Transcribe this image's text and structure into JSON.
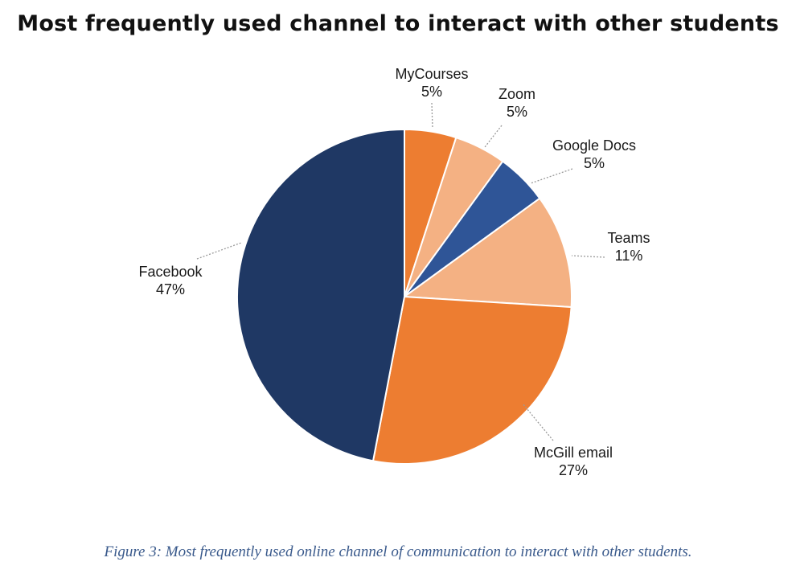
{
  "chart_data": {
    "type": "pie",
    "title": "Most frequently used channel to interact with other students",
    "slices": [
      {
        "label": "MyCourses",
        "value": 5,
        "value_label": "5%",
        "color": "#ED7D31"
      },
      {
        "label": "Zoom",
        "value": 5,
        "value_label": "5%",
        "color": "#F4B183"
      },
      {
        "label": "Google Docs",
        "value": 5,
        "value_label": "5%",
        "color": "#2F5597"
      },
      {
        "label": "Teams",
        "value": 11,
        "value_label": "11%",
        "color": "#F4B183"
      },
      {
        "label": "McGill email",
        "value": 27,
        "value_label": "27%",
        "color": "#ED7D31"
      },
      {
        "label": "Facebook",
        "value": 47,
        "value_label": "47%",
        "color": "#1F3864"
      }
    ],
    "start_angle": "12 o'clock",
    "direction": "clockwise",
    "legend": "none"
  },
  "caption": "Figure 3: Most frequently used online channel of communication to interact with other students."
}
